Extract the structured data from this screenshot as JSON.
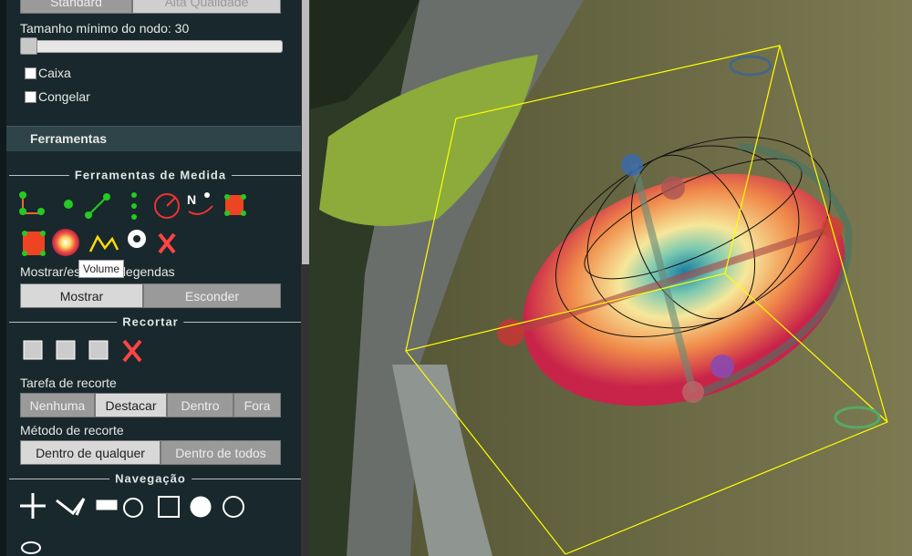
{
  "sidebar": {
    "quality_buttons": [
      "Standard",
      "Alta Qualidade"
    ],
    "min_node_size_label": "Tamanho mínimo do nodo: 30",
    "checkboxes": [
      "Caixa",
      "Congelar"
    ],
    "tools_header": "Ferramentas",
    "measure_section": "Ferramentas de Medida",
    "tooltip": "Volume",
    "legend_label": "Mostrar/esconder legendas",
    "legend_buttons": [
      "Mostrar",
      "Esconder"
    ],
    "clip_section": "Recortar",
    "clip_task_label": "Tarefa de recorte",
    "clip_task_buttons": [
      "Nenhuma",
      "Destacar",
      "Dentro",
      "Fora"
    ],
    "clip_method_label": "Método de recorte",
    "clip_method_buttons": [
      "Dentro de qualquer",
      "Dentro de todos"
    ],
    "navigation_section": "Navegação"
  }
}
